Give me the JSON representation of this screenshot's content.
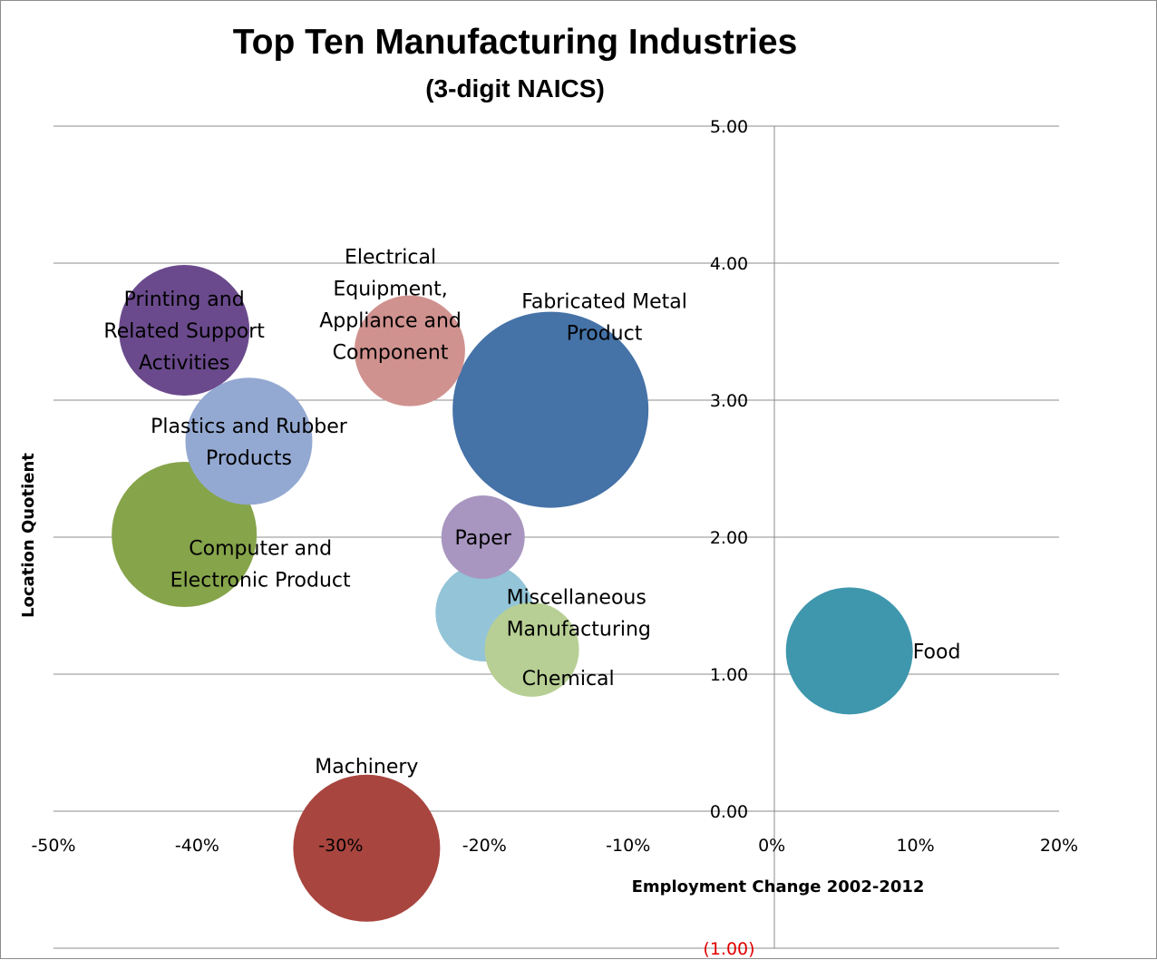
{
  "chart_data": {
    "type": "bubble",
    "title": "Top Ten Manufacturing Industries",
    "subtitle": "(3-digit NAICS)",
    "xlabel": "Employment Change 2002-2012",
    "ylabel": "Location Quotient",
    "xlim": [
      -0.5,
      0.2
    ],
    "ylim": [
      -1,
      5
    ],
    "x_ticks": [
      {
        "value": -0.5,
        "label": "-50%"
      },
      {
        "value": -0.4,
        "label": "-40%"
      },
      {
        "value": -0.3,
        "label": "-30%"
      },
      {
        "value": -0.2,
        "label": "-20%"
      },
      {
        "value": -0.1,
        "label": "-10%"
      },
      {
        "value": 0.0,
        "label": "0%"
      },
      {
        "value": 0.1,
        "label": "10%"
      },
      {
        "value": 0.2,
        "label": "20%"
      }
    ],
    "y_ticks": [
      {
        "value": 5,
        "label": "5.00",
        "negative": false
      },
      {
        "value": 4,
        "label": "4.00",
        "negative": false
      },
      {
        "value": 3,
        "label": "3.00",
        "negative": false
      },
      {
        "value": 2,
        "label": "2.00",
        "negative": false
      },
      {
        "value": 1,
        "label": "1.00",
        "negative": false
      },
      {
        "value": 0,
        "label": "0.00",
        "negative": false
      },
      {
        "value": -1,
        "label": "(1.00)",
        "negative": true
      }
    ],
    "grid": "horizontal",
    "negative_label_color": "#e00000",
    "series": [
      {
        "name": "Fabricated Metal Product",
        "label_lines": [
          "Fabricated Metal",
          "Product"
        ],
        "x": -0.154,
        "y": 2.93,
        "size": 108,
        "color": "#4572a7",
        "label_pos": "right-up"
      },
      {
        "name": "Printing and Related Support Activities",
        "label_lines": [
          "Printing and",
          "Related Support",
          "Activities"
        ],
        "x": -0.409,
        "y": 3.51,
        "size": 72,
        "color": "#6a4a8c",
        "label_pos": "center"
      },
      {
        "name": "Electrical Equipment, Appliance and Component",
        "label_lines": [
          "Electrical",
          "Equipment,",
          "Appliance and",
          "Component"
        ],
        "x": -0.252,
        "y": 3.36,
        "size": 61,
        "color": "#d0928f",
        "label_pos": "center-up"
      },
      {
        "name": "Plastics and Rubber Products",
        "label_lines": [
          "Plastics and Rubber",
          "Products"
        ],
        "x": -0.364,
        "y": 2.7,
        "size": 70,
        "color": "#94a9d2",
        "label_pos": "center"
      },
      {
        "name": "Computer and Electronic Product",
        "label_lines": [
          "Computer and",
          "Electronic Product"
        ],
        "x": -0.409,
        "y": 2.02,
        "size": 80,
        "color": "#86a44a",
        "label_pos": "right-down"
      },
      {
        "name": "Paper",
        "label_lines": [
          "Paper"
        ],
        "x": -0.201,
        "y": 2.0,
        "size": 46,
        "color": "#a896c0",
        "label_pos": "center"
      },
      {
        "name": "Chemical",
        "label_lines": [
          "Chemical"
        ],
        "x": -0.167,
        "y": 1.18,
        "size": 52,
        "color": "#b7cf94",
        "label_pos": "right-down"
      },
      {
        "name": "Miscellaneous Manufacturing",
        "label_lines": [
          "Miscellaneous",
          "Manufacturing"
        ],
        "x": -0.2,
        "y": 1.45,
        "size": 54,
        "color": "#93c4d8",
        "label_pos": "right"
      },
      {
        "name": "Food",
        "label_lines": [
          "Food"
        ],
        "x": 0.054,
        "y": 1.17,
        "size": 70,
        "color": "#3f97ad",
        "label_pos": "right"
      },
      {
        "name": "Machinery",
        "label_lines": [
          "Machinery"
        ],
        "x": -0.282,
        "y": -0.27,
        "size": 81,
        "color": "#a8453f",
        "label_pos": "top"
      }
    ]
  }
}
